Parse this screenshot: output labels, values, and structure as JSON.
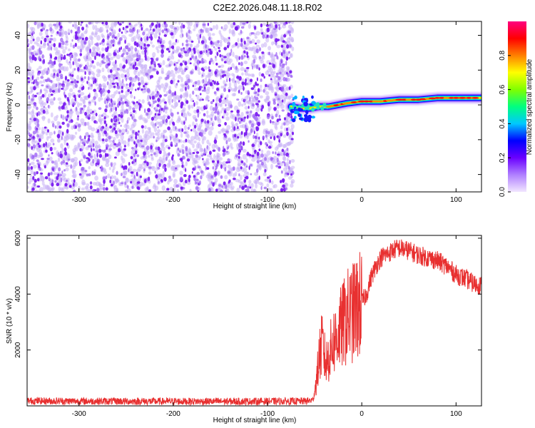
{
  "title": "C2E2.2026.048.11.18.R02",
  "colors": {
    "background": "#ffffff",
    "axis": "#000000",
    "snr_line": "#e83030",
    "scatter_main": "#7a1cf0",
    "scatter_light": "#c9b0f5"
  },
  "chart_data": [
    {
      "type": "heatmap",
      "name": "spectrogram",
      "xlabel": "Height of straight line (km)",
      "ylabel": "Frequency (Hz)",
      "xlim": [
        -355,
        127
      ],
      "ylim": [
        -50,
        48
      ],
      "xticks": [
        -300,
        -200,
        -100,
        0,
        100
      ],
      "yticks": [
        -40,
        -20,
        0,
        20,
        40
      ],
      "noise_region_km": [
        -355,
        -73
      ],
      "signal_track": {
        "x": [
          -75,
          -65,
          -55,
          -45,
          -35,
          -25,
          -15,
          0,
          20,
          40,
          60,
          80,
          100,
          127
        ],
        "freq_hz": [
          -1,
          -2,
          -2,
          -1,
          -1,
          0,
          1,
          2,
          2,
          3,
          3,
          4,
          4,
          4
        ]
      },
      "colorbar": {
        "label": "Normalized spectral amplitude",
        "ticks": [
          0.0,
          0.2,
          0.4,
          0.6,
          0.8
        ],
        "tick_labels": [
          "0.0",
          "0.2",
          "0.4",
          "0.6",
          "0.8"
        ],
        "range": [
          0,
          1
        ],
        "stops": [
          "#f2e6ff",
          "#b080ff",
          "#6a00ff",
          "#0000ff",
          "#00c8ff",
          "#00ff80",
          "#80ff00",
          "#ffff00",
          "#ff8000",
          "#ff0000",
          "#ff0080"
        ]
      }
    },
    {
      "type": "line",
      "name": "snr",
      "xlabel": "Height of straight line (km)",
      "ylabel": "SNR (10 * v/v)",
      "xlim": [
        -355,
        127
      ],
      "ylim": [
        0,
        6100
      ],
      "xticks": [
        -300,
        -200,
        -100,
        0,
        100
      ],
      "yticks": [
        2000,
        4000,
        6000
      ],
      "series": [
        {
          "name": "SNR",
          "x": [
            -355,
            -300,
            -250,
            -200,
            -150,
            -100,
            -60,
            -52,
            -48,
            -45,
            -42,
            -38,
            -35,
            -30,
            -25,
            -20,
            -15,
            -10,
            -5,
            0,
            5,
            10,
            15,
            20,
            25,
            30,
            35,
            40,
            50,
            60,
            70,
            80,
            90,
            100,
            110,
            120,
            127
          ],
          "values": [
            180,
            170,
            165,
            160,
            160,
            165,
            170,
            200,
            900,
            1800,
            2200,
            1500,
            1800,
            2300,
            2600,
            2900,
            3200,
            3300,
            3500,
            3700,
            4000,
            4600,
            5000,
            5300,
            5400,
            5500,
            5600,
            5650,
            5550,
            5400,
            5300,
            5200,
            5000,
            4700,
            4550,
            4350,
            4300
          ]
        }
      ]
    }
  ]
}
